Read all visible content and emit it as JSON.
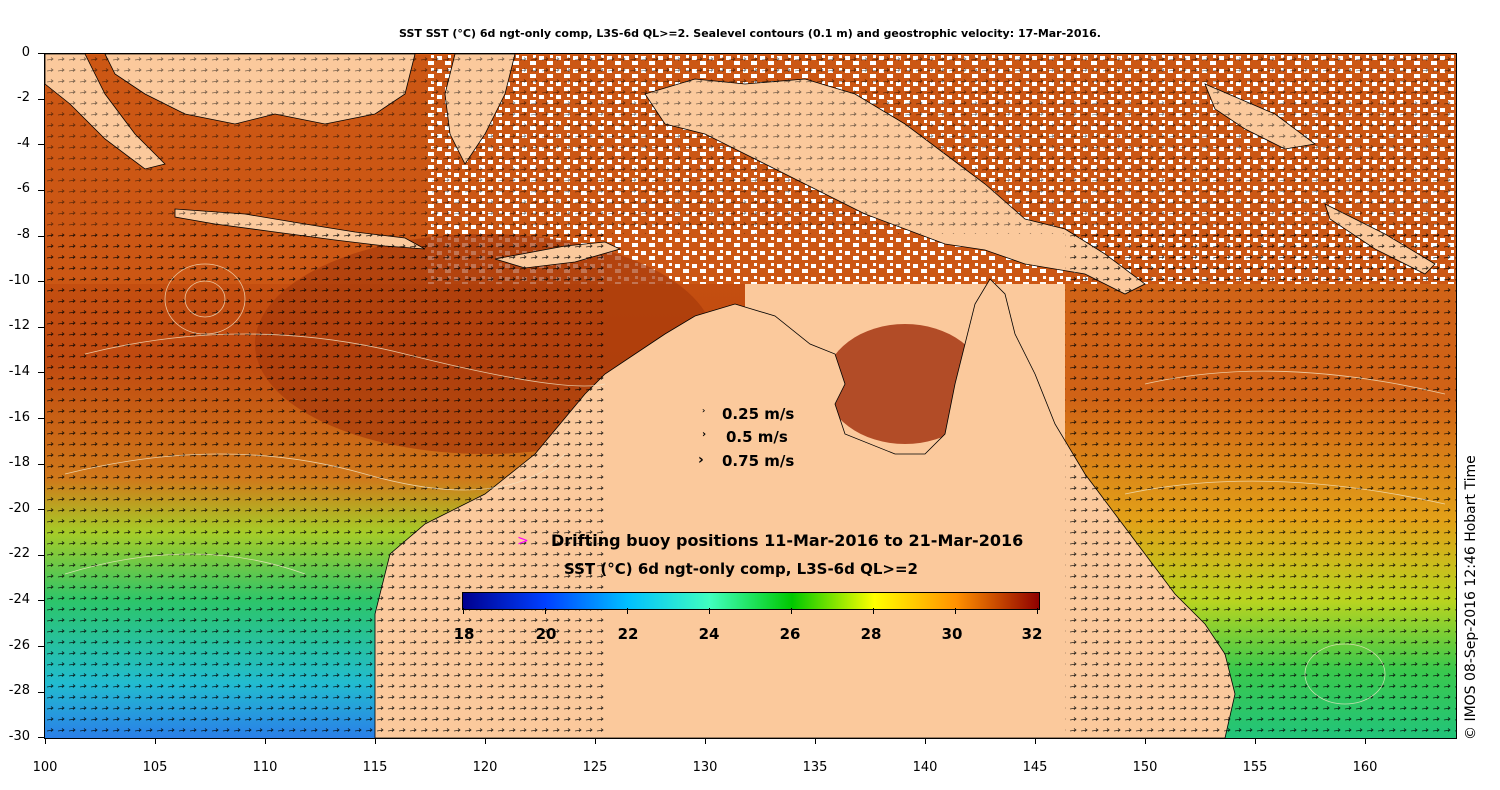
{
  "title": "SST SST (°C) 6d ngt-only comp, L3S-6d QL>=2. Sealevel contours (0.1 m) and geostrophic velocity: 17-Mar-2016.",
  "y_axis": {
    "ticks": [
      "0",
      "-2",
      "-4",
      "-6",
      "-8",
      "-10",
      "-12",
      "-14",
      "-16",
      "-18",
      "-20",
      "-22",
      "-24",
      "-26",
      "-28",
      "-30"
    ],
    "range": [
      -30,
      0
    ]
  },
  "x_axis": {
    "ticks": [
      "100",
      "105",
      "110",
      "115",
      "120",
      "125",
      "130",
      "135",
      "140",
      "145",
      "150",
      "155",
      "160"
    ],
    "range": [
      100,
      164
    ]
  },
  "velocity_legend": {
    "items": [
      {
        "label": "0.25 m/s"
      },
      {
        "label": "0.5 m/s"
      },
      {
        "label": "0.75 m/s"
      }
    ]
  },
  "buoy_legend": {
    "symbol": ">",
    "label": "Drifting buoy positions 11-Mar-2016 to 21-Mar-2016"
  },
  "colorbar": {
    "title": "SST (°C) 6d ngt-only comp, L3S-6d QL>=2",
    "ticks": [
      "18",
      "20",
      "22",
      "24",
      "26",
      "28",
      "30",
      "32"
    ],
    "range": [
      18,
      32
    ],
    "colors": [
      "#00008f",
      "#0040ff",
      "#00bfff",
      "#40ffbf",
      "#00c800",
      "#ffff00",
      "#ff9000",
      "#8f0000"
    ]
  },
  "credit": "© IMOS 08-Sep-2016 12:46 Hobart Time",
  "colors": {
    "land": "#fbc99c",
    "warm": "#c8540f",
    "hot": "#9c2a0a",
    "cool_green": "#2bc864",
    "cold_cyan": "#27c2d4",
    "cold_blue": "#2a7fe8"
  }
}
